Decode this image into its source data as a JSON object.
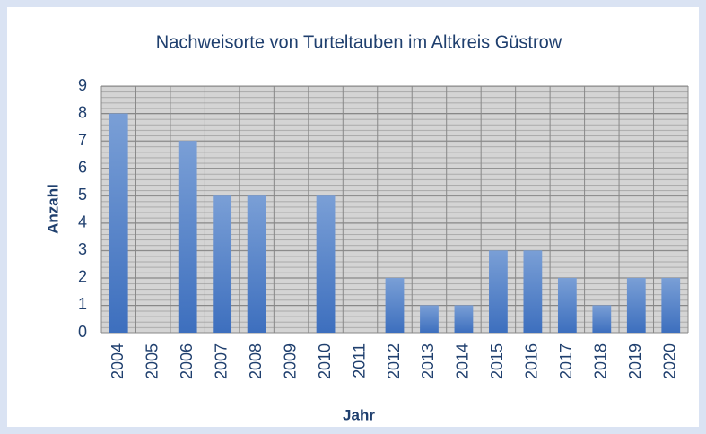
{
  "chart_data": {
    "type": "bar",
    "title": "Nachweisorte von Turteltauben im Altkreis Güstrow",
    "x_label": "Jahr",
    "y_label": "Anzahl",
    "categories": [
      "2004",
      "2005",
      "2006",
      "2007",
      "2008",
      "2009",
      "2010",
      "2011",
      "2012",
      "2013",
      "2014",
      "2015",
      "2016",
      "2017",
      "2018",
      "2019",
      "2020"
    ],
    "values": [
      8,
      0,
      7,
      5,
      5,
      0,
      5,
      0,
      2,
      1,
      1,
      3,
      3,
      2,
      1,
      2,
      2
    ],
    "color": "#4a7cc8",
    "ylim": [
      0,
      9
    ],
    "yticks": [
      0,
      1,
      2,
      3,
      4,
      5,
      6,
      7,
      8,
      9
    ],
    "grid": true
  }
}
